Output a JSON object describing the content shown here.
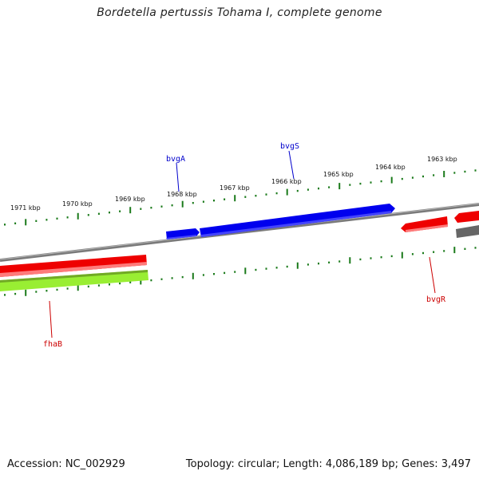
{
  "title": "Bordetella pertussis Tohama I, complete genome",
  "footer": {
    "accession": "Accession: NC_002929",
    "summary": "Topology: circular; Length: 4,086,189 bp; Genes: 3,497"
  },
  "ruler_labels": [
    "1971 kbp",
    "1970 kbp",
    "1969 kbp",
    "1968 kbp",
    "1967 kbp",
    "1966 kbp",
    "1965 kbp",
    "1964 kbp",
    "1963 kbp"
  ],
  "genes": {
    "bvgA": {
      "label": "bvgA",
      "color": "#0000cc"
    },
    "bvgS": {
      "label": "bvgS",
      "color": "#0000cc"
    },
    "bvgR": {
      "label": "bvgR",
      "color": "#cc0000"
    },
    "fhaB": {
      "label": "fhaB",
      "color": "#cc0000"
    }
  },
  "colors": {
    "backbone": "#7a7a7a",
    "tick": "#1a7a1a",
    "blue_gene": "#0000ee",
    "red_gene": "#ee0000",
    "green_gene": "#99ee33",
    "gray_gene": "#666666"
  }
}
